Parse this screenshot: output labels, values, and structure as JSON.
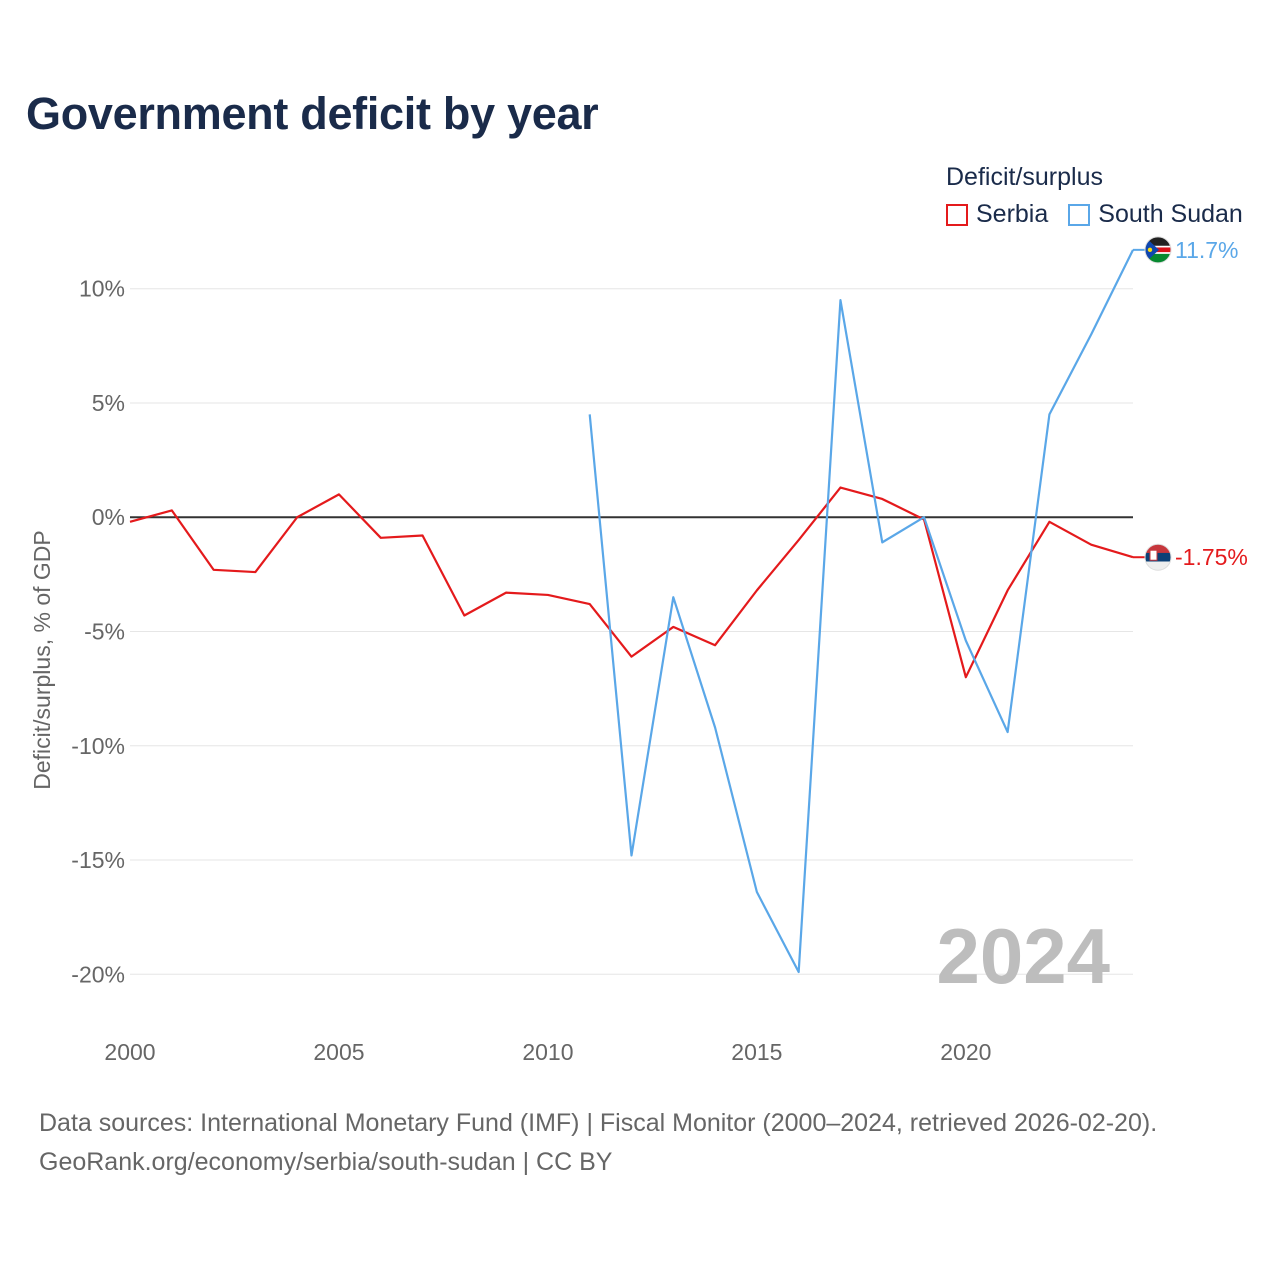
{
  "title": "Government deficit by year",
  "legend": {
    "title": "Deficit/surplus",
    "items": [
      {
        "label": "Serbia",
        "color": "#e41a1c"
      },
      {
        "label": "South Sudan",
        "color": "#5aa7e8"
      }
    ]
  },
  "sources": {
    "line1": "Data sources: International Monetary Fund (IMF) | Fiscal Monitor (2000–2024, retrieved 2026-02-20).",
    "line2": "GeoRank.org/economy/serbia/south-sudan | CC BY"
  },
  "chart_data": {
    "type": "line",
    "title": "Government deficit by year",
    "xlabel": "",
    "ylabel": "Deficit/surplus, % of GDP",
    "xlim": [
      2000,
      2024
    ],
    "ylim": [
      -22,
      12
    ],
    "yticks": [
      10,
      5,
      0,
      -5,
      -10,
      -15,
      -20
    ],
    "ytick_labels": [
      "10%",
      "5%",
      "0%",
      "-5%",
      "-10%",
      "-15%",
      "-20%"
    ],
    "xticks": [
      2000,
      2005,
      2010,
      2015,
      2020
    ],
    "xtick_labels": [
      "2000",
      "2005",
      "2010",
      "2015",
      "2020"
    ],
    "watermark": "2024",
    "grid": true,
    "zero_line": true,
    "series": [
      {
        "name": "Serbia",
        "color": "#e41a1c",
        "end_label": "-1.75%",
        "x": [
          2000,
          2001,
          2002,
          2003,
          2004,
          2005,
          2006,
          2007,
          2008,
          2009,
          2010,
          2011,
          2012,
          2013,
          2014,
          2015,
          2016,
          2017,
          2018,
          2019,
          2020,
          2021,
          2022,
          2023,
          2024
        ],
        "values": [
          -0.2,
          0.3,
          -2.3,
          -2.4,
          0.0,
          1.0,
          -0.9,
          -0.8,
          -4.3,
          -3.3,
          -3.4,
          -3.8,
          -6.1,
          -4.8,
          -5.6,
          -3.2,
          -1.0,
          1.3,
          0.8,
          -0.1,
          -7.0,
          -3.2,
          -0.2,
          -1.2,
          -1.75
        ]
      },
      {
        "name": "South Sudan",
        "color": "#5aa7e8",
        "end_label": "11.7%",
        "x": [
          2011,
          2012,
          2013,
          2014,
          2015,
          2016,
          2017,
          2018,
          2019,
          2020,
          2021,
          2022,
          2023,
          2024
        ],
        "values": [
          4.5,
          -14.8,
          -3.5,
          -9.2,
          -16.4,
          -19.9,
          9.5,
          -1.1,
          0.0,
          -5.4,
          -9.4,
          4.5,
          8.0,
          11.7
        ]
      }
    ]
  }
}
